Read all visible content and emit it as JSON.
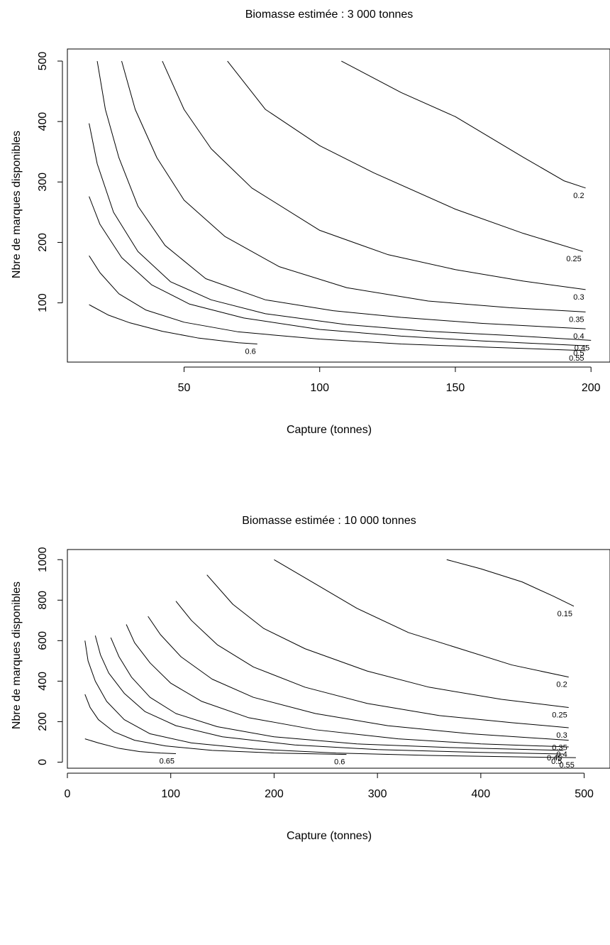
{
  "chart_data": [
    {
      "type": "contour",
      "title": "Biomasse estimée : 3 000 tonnes",
      "xlabel": "Capture (tonnes)",
      "ylabel": "Nbre de marques disponibles",
      "xlim": [
        7,
        207
      ],
      "ylim": [
        2,
        520
      ],
      "x_ticks": [
        50,
        100,
        150,
        200
      ],
      "y_ticks": [
        100,
        200,
        300,
        400,
        500
      ],
      "grid": false,
      "levels": [
        {
          "label": "0.2",
          "points": [
            [
              108,
              500
            ],
            [
              130,
              448
            ],
            [
              150,
              408
            ],
            [
              175,
              341
            ],
            [
              190,
              302
            ],
            [
              198,
              290
            ]
          ]
        },
        {
          "label": "0.25",
          "points": [
            [
              66,
              500
            ],
            [
              80,
              420
            ],
            [
              100,
              360
            ],
            [
              120,
              315
            ],
            [
              150,
              255
            ],
            [
              175,
              215
            ],
            [
              197,
              185
            ]
          ]
        },
        {
          "label": "0.3",
          "points": [
            [
              42,
              500
            ],
            [
              50,
              420
            ],
            [
              60,
              355
            ],
            [
              75,
              290
            ],
            [
              100,
              220
            ],
            [
              125,
              180
            ],
            [
              150,
              155
            ],
            [
              175,
              136
            ],
            [
              198,
              122
            ]
          ]
        },
        {
          "label": "0.35",
          "points": [
            [
              27,
              500
            ],
            [
              32,
              420
            ],
            [
              40,
              340
            ],
            [
              50,
              270
            ],
            [
              65,
              210
            ],
            [
              85,
              160
            ],
            [
              110,
              125
            ],
            [
              140,
              103
            ],
            [
              170,
              92
            ],
            [
              198,
              85
            ]
          ]
        },
        {
          "label": "0.4",
          "points": [
            [
              18,
              500
            ],
            [
              21,
              420
            ],
            [
              26,
              340
            ],
            [
              33,
              260
            ],
            [
              43,
              195
            ],
            [
              58,
              140
            ],
            [
              80,
              105
            ],
            [
              105,
              87
            ],
            [
              130,
              76
            ],
            [
              160,
              66
            ],
            [
              198,
              57
            ]
          ]
        },
        {
          "label": "0.45",
          "points": [
            [
              15,
              397
            ],
            [
              18,
              330
            ],
            [
              24,
              250
            ],
            [
              33,
              185
            ],
            [
              45,
              135
            ],
            [
              60,
              105
            ],
            [
              80,
              82
            ],
            [
              110,
              64
            ],
            [
              140,
              53
            ],
            [
              170,
              46
            ],
            [
              200,
              38
            ]
          ]
        },
        {
          "label": "0.5",
          "points": [
            [
              15,
              276
            ],
            [
              19,
              230
            ],
            [
              27,
              175
            ],
            [
              38,
              130
            ],
            [
              52,
              98
            ],
            [
              72,
              75
            ],
            [
              100,
              56
            ],
            [
              130,
              45
            ],
            [
              160,
              37
            ],
            [
              198,
              29
            ]
          ]
        },
        {
          "label": "0.55",
          "points": [
            [
              15,
              178
            ],
            [
              19,
              150
            ],
            [
              26,
              115
            ],
            [
              36,
              88
            ],
            [
              50,
              68
            ],
            [
              70,
              52
            ],
            [
              100,
              40
            ],
            [
              130,
              32
            ],
            [
              160,
              27
            ],
            [
              198,
              21
            ]
          ]
        },
        {
          "label": "0.6",
          "points": [
            [
              15,
              97
            ],
            [
              22,
              80
            ],
            [
              30,
              67
            ],
            [
              42,
              53
            ],
            [
              55,
              42
            ],
            [
              70,
              34
            ],
            [
              77,
              32
            ]
          ]
        }
      ]
    },
    {
      "type": "contour",
      "title": "Biomasse estimée : 10 000 tonnes",
      "xlabel": "Capture (tonnes)",
      "ylabel": "Nbre de marques disponibles",
      "xlim": [
        0,
        525
      ],
      "ylim": [
        -30,
        1050
      ],
      "x_ticks": [
        0,
        100,
        200,
        300,
        400,
        500
      ],
      "y_ticks": [
        0,
        200,
        400,
        600,
        800,
        1000
      ],
      "grid": false,
      "levels": [
        {
          "label": "0.15",
          "points": [
            [
              367,
              1000
            ],
            [
              400,
              955
            ],
            [
              440,
              890
            ],
            [
              470,
              820
            ],
            [
              490,
              770
            ]
          ]
        },
        {
          "label": "0.2",
          "points": [
            [
              200,
              1000
            ],
            [
              240,
              880
            ],
            [
              280,
              760
            ],
            [
              330,
              640
            ],
            [
              380,
              560
            ],
            [
              430,
              480
            ],
            [
              485,
              420
            ]
          ]
        },
        {
          "label": "0.25",
          "points": [
            [
              135,
              925
            ],
            [
              160,
              780
            ],
            [
              190,
              660
            ],
            [
              230,
              560
            ],
            [
              290,
              450
            ],
            [
              350,
              370
            ],
            [
              420,
              310
            ],
            [
              485,
              270
            ]
          ]
        },
        {
          "label": "0.3",
          "points": [
            [
              105,
              795
            ],
            [
              120,
              700
            ],
            [
              145,
              580
            ],
            [
              180,
              470
            ],
            [
              230,
              370
            ],
            [
              290,
              290
            ],
            [
              360,
              230
            ],
            [
              430,
              195
            ],
            [
              485,
              170
            ]
          ]
        },
        {
          "label": "0.35",
          "points": [
            [
              78,
              720
            ],
            [
              90,
              630
            ],
            [
              110,
              520
            ],
            [
              140,
              410
            ],
            [
              180,
              320
            ],
            [
              240,
              240
            ],
            [
              310,
              180
            ],
            [
              390,
              140
            ],
            [
              485,
              108
            ]
          ]
        },
        {
          "label": "0.4",
          "points": [
            [
              57,
              680
            ],
            [
              65,
              590
            ],
            [
              80,
              490
            ],
            [
              100,
              390
            ],
            [
              130,
              300
            ],
            [
              175,
              220
            ],
            [
              240,
              160
            ],
            [
              320,
              115
            ],
            [
              400,
              90
            ],
            [
              485,
              75
            ]
          ]
        },
        {
          "label": "0.45",
          "points": [
            [
              42,
              615
            ],
            [
              50,
              520
            ],
            [
              62,
              420
            ],
            [
              80,
              320
            ],
            [
              105,
              240
            ],
            [
              145,
              175
            ],
            [
              200,
              125
            ],
            [
              280,
              90
            ],
            [
              370,
              72
            ],
            [
              480,
              58
            ]
          ]
        },
        {
          "label": "0.5",
          "points": [
            [
              27,
              625
            ],
            [
              32,
              530
            ],
            [
              40,
              440
            ],
            [
              55,
              340
            ],
            [
              75,
              250
            ],
            [
              105,
              180
            ],
            [
              150,
              125
            ],
            [
              220,
              85
            ],
            [
              300,
              62
            ],
            [
              400,
              48
            ],
            [
              480,
              40
            ]
          ]
        },
        {
          "label": "0.55",
          "points": [
            [
              17,
              600
            ],
            [
              20,
              500
            ],
            [
              27,
              400
            ],
            [
              38,
              300
            ],
            [
              55,
              210
            ],
            [
              80,
              140
            ],
            [
              120,
              95
            ],
            [
              180,
              65
            ],
            [
              260,
              45
            ],
            [
              350,
              33
            ],
            [
              450,
              25
            ],
            [
              492,
              22
            ]
          ]
        },
        {
          "label": "0.6",
          "points": [
            [
              17,
              335
            ],
            [
              22,
              270
            ],
            [
              30,
              210
            ],
            [
              45,
              150
            ],
            [
              65,
              108
            ],
            [
              95,
              80
            ],
            [
              140,
              58
            ],
            [
              200,
              45
            ],
            [
              270,
              38
            ]
          ]
        },
        {
          "label": "0.65",
          "points": [
            [
              17,
              115
            ],
            [
              30,
              95
            ],
            [
              50,
              68
            ],
            [
              70,
              52
            ],
            [
              90,
              45
            ],
            [
              105,
              42
            ]
          ]
        }
      ]
    }
  ]
}
